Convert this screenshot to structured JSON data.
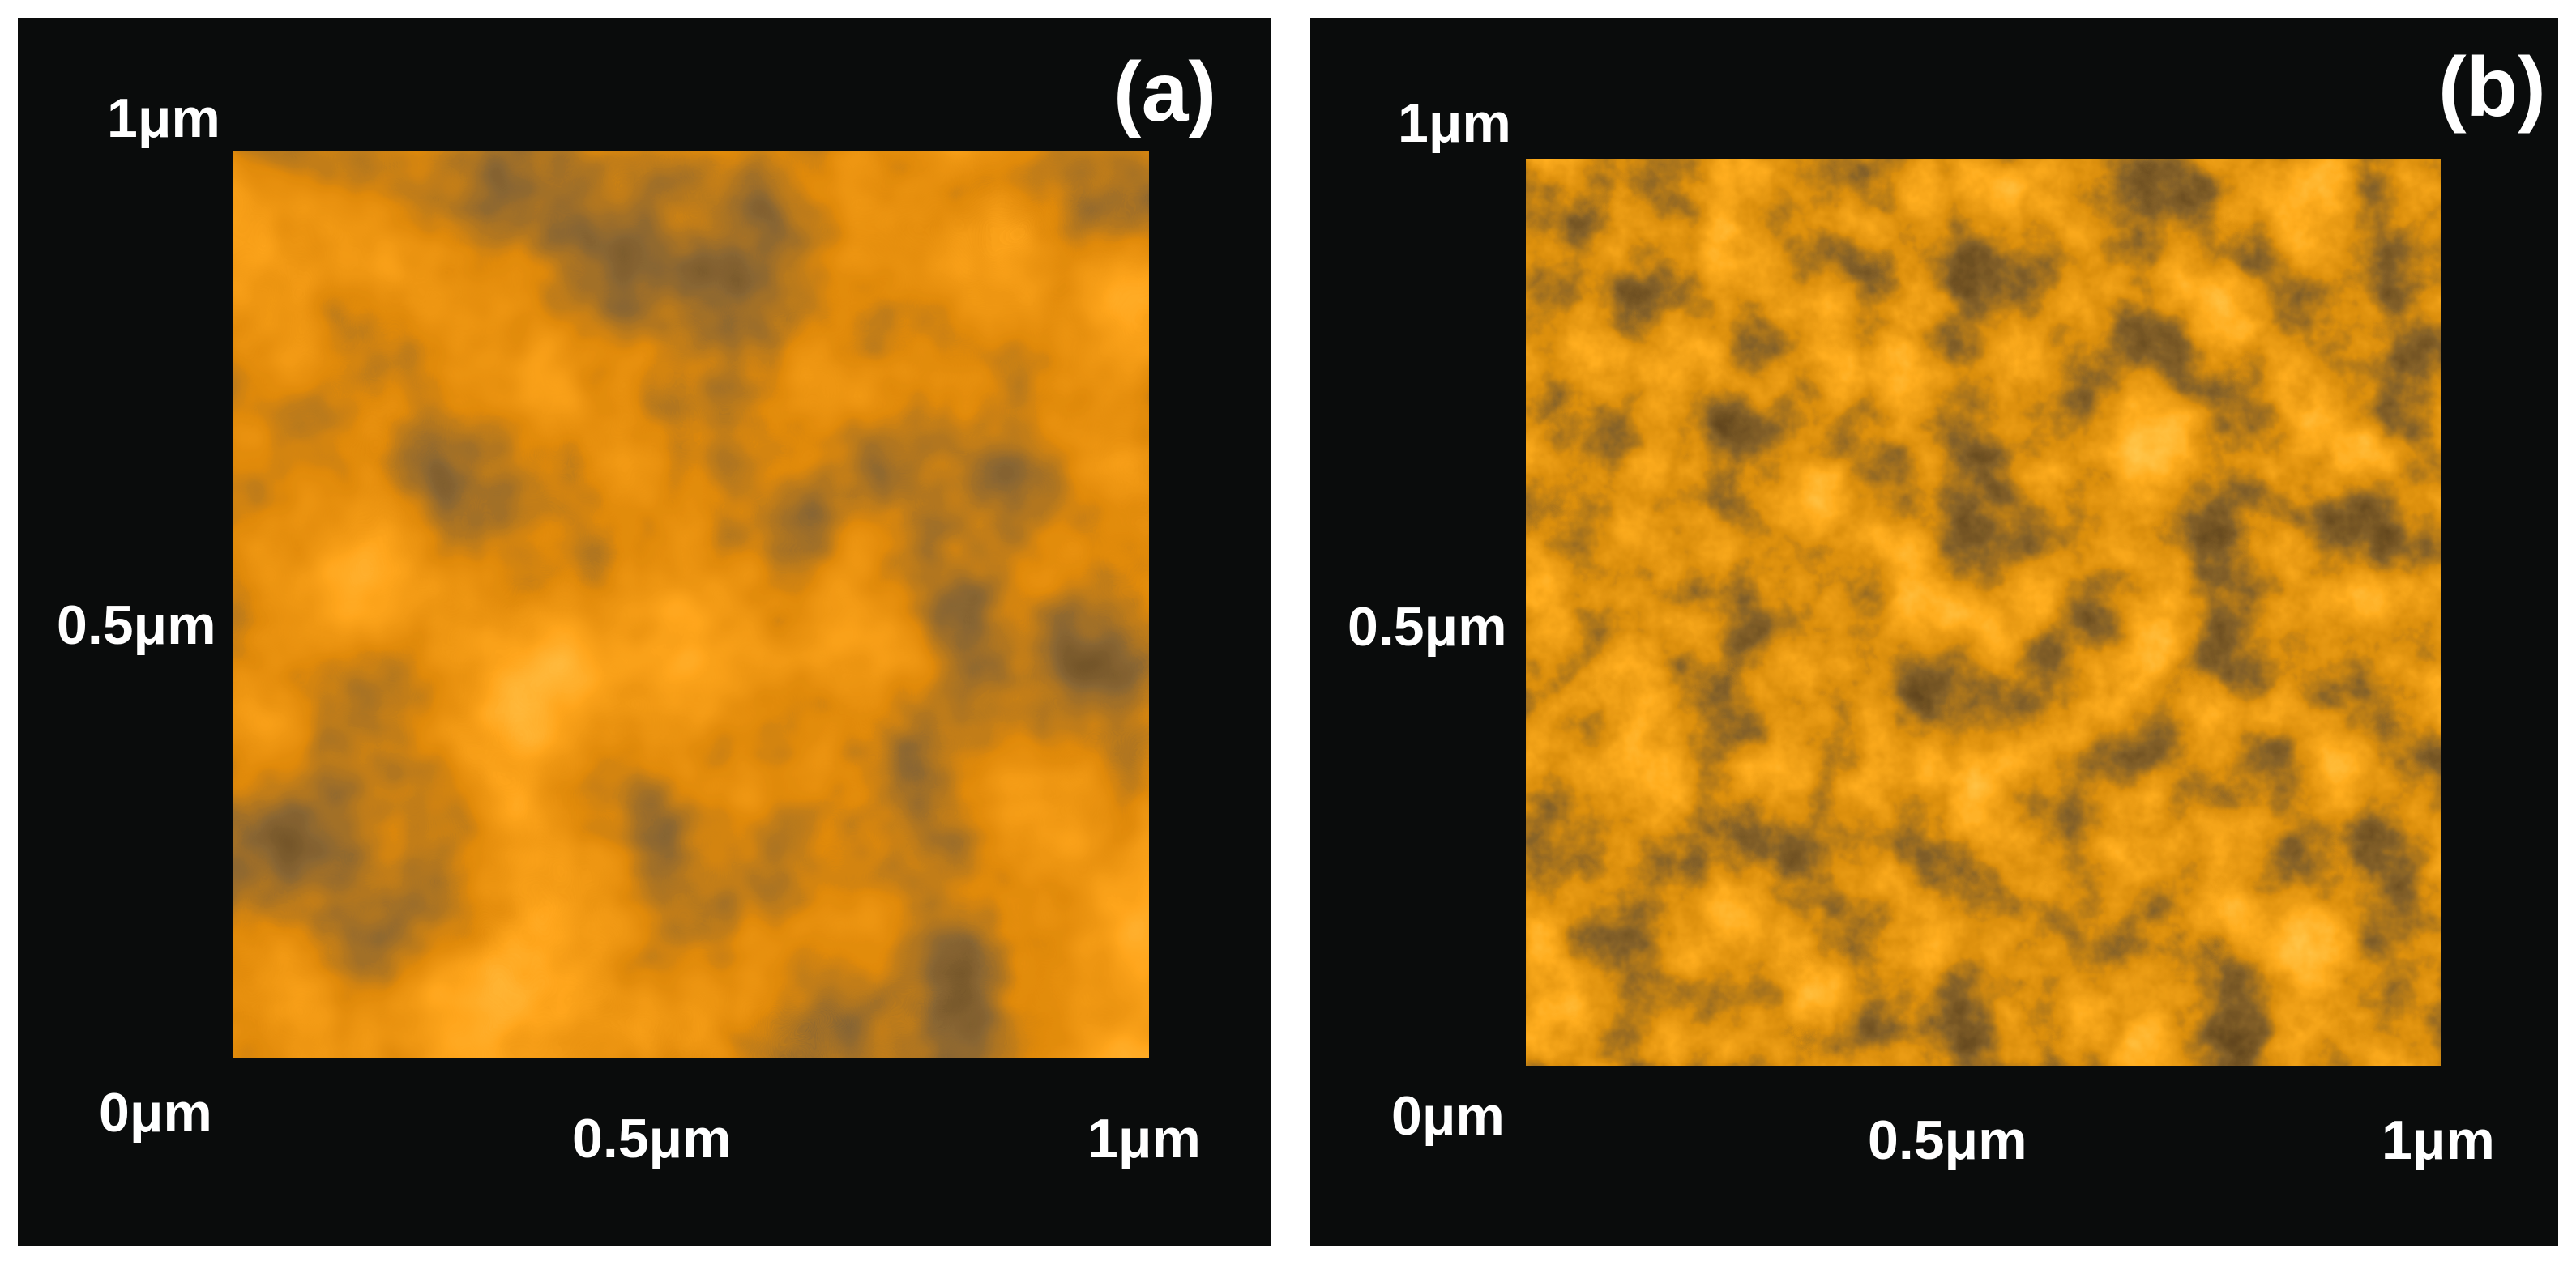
{
  "colors": {
    "background": "#0a0c0c",
    "frame": "#ffffff",
    "text": "#ffffff",
    "palette": [
      "#2a1608",
      "#5c4420",
      "#8a6a34",
      "#e08a0a",
      "#ffa51c",
      "#ffc24a",
      "#fff0c4"
    ]
  },
  "panels": [
    {
      "letter": "(a)",
      "y_labels": {
        "top": "1μm",
        "mid": "0.5μm",
        "origin": "0μm"
      },
      "x_labels": {
        "mid": "0.5μm",
        "end": "1μm"
      }
    },
    {
      "letter": "(b)",
      "y_labels": {
        "top": "1μm",
        "mid": "0.5μm",
        "origin": "0μm"
      },
      "x_labels": {
        "mid": "0.5μm",
        "end": "1μm"
      }
    }
  ]
}
